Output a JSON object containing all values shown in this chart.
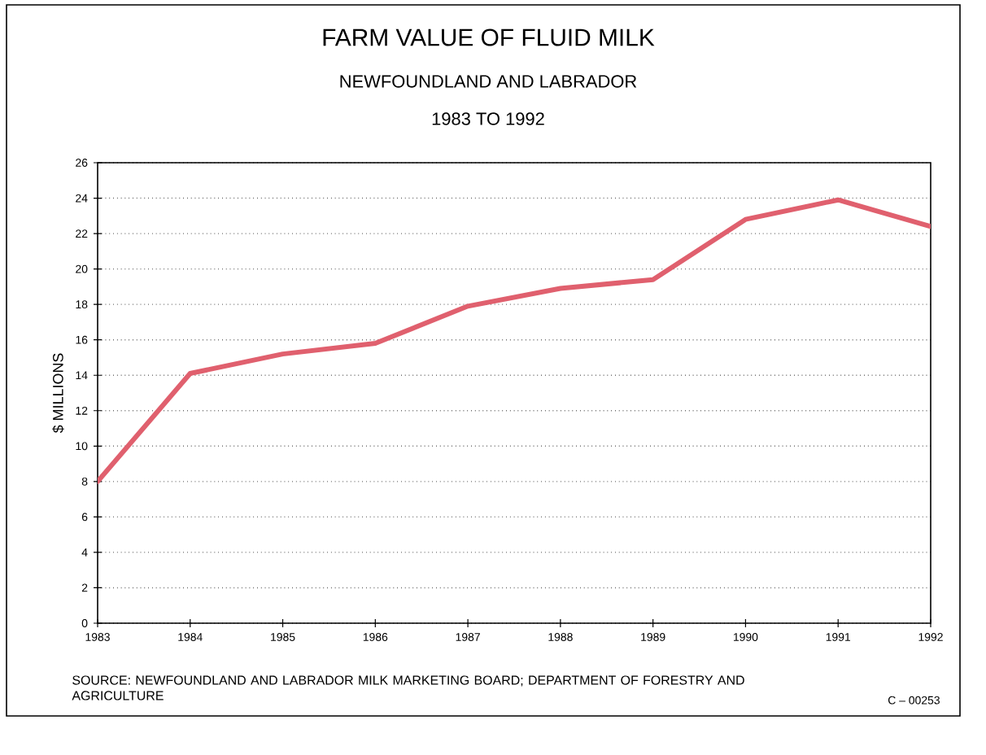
{
  "chart_data": {
    "type": "line",
    "title": "FARM VALUE OF FLUID MILK",
    "subtitle": "NEWFOUNDLAND AND LABRADOR",
    "ylabel": "$ MILLIONS",
    "x": [
      1983,
      1984,
      1985,
      1986,
      1987,
      1988,
      1989,
      1990,
      1991,
      1992
    ],
    "series": [
      {
        "color": "#e0606e",
        "values": [
          8,
          14.1,
          15.2,
          15.8,
          17.9,
          18.9,
          19.4,
          22.8,
          23.9,
          22.4
        ]
      }
    ],
    "xlim": [
      1983,
      1992
    ],
    "xticks": [
      1983,
      1984,
      1985,
      1986,
      1987,
      1988,
      1989,
      1990,
      1991,
      1992
    ],
    "ylim": [
      0,
      26
    ],
    "yticks": [
      0,
      2,
      4,
      6,
      8,
      10,
      12,
      14,
      16,
      18,
      20,
      22,
      24,
      26
    ],
    "grid": "y",
    "marker": "none",
    "line_style": "solid",
    "annotations": [
      "1983 TO 1992",
      "SOURCE: NEWFOUNDLAND AND LABRADOR MILK MARKETING BOARD; DEPARTMENT OF FORESTRY AND AGRICULTURE",
      "C – 00253"
    ]
  }
}
